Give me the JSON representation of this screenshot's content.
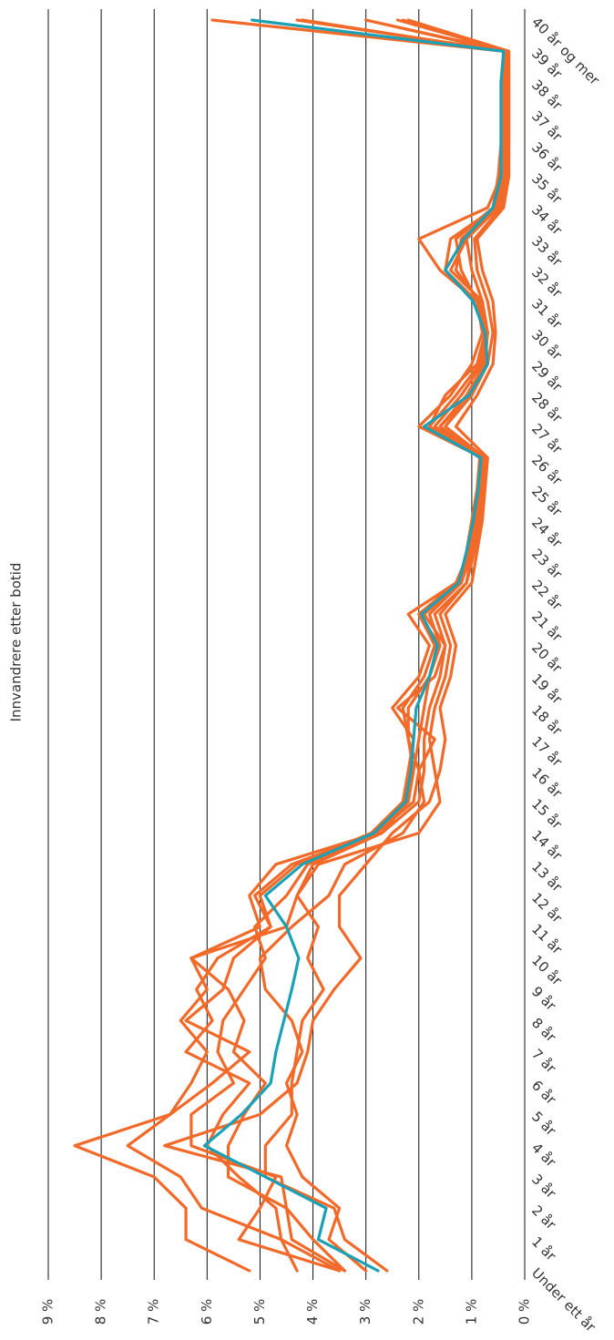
{
  "chart_data": {
    "type": "line",
    "title": "Innvandrere etter botid",
    "categories": [
      "Under ett år",
      "1 år",
      "2 år",
      "3 år",
      "4 år",
      "5 år",
      "6 år",
      "7 år",
      "8 år",
      "9 år",
      "10 år",
      "11 år",
      "12 år",
      "13 år",
      "14 år",
      "15 år",
      "16 år",
      "17 år",
      "18 år",
      "19 år",
      "20 år",
      "21 år",
      "22 år",
      "23 år",
      "24 år",
      "25 år",
      "26 år",
      "27 år",
      "28 år",
      "29 år",
      "30 år",
      "31 år",
      "32 år",
      "33 år",
      "34 år",
      "35 år",
      "36 år",
      "37 år",
      "38 år",
      "39 år",
      "40 år og mer"
    ],
    "series": [
      {
        "color": "#f26a2a",
        "values": [
          5.2,
          6.4,
          6.4,
          7.0,
          8.5,
          6.7,
          6.3,
          6.0,
          6.5,
          6.0,
          6.3,
          5.0,
          5.2,
          4.7,
          2.8,
          2.2,
          2.1,
          2.2,
          2.3,
          1.9,
          1.7,
          2.0,
          1.2,
          1.0,
          0.9,
          0.8,
          0.8,
          2.0,
          1.4,
          1.0,
          0.8,
          0.9,
          1.6,
          2.0,
          0.7,
          0.45,
          0.4,
          0.4,
          0.4,
          0.4,
          5.9
        ]
      },
      {
        "color": "#f26a2a",
        "values": [
          4.3,
          4.6,
          6.1,
          6.5,
          7.5,
          6.7,
          5.9,
          5.2,
          6.4,
          5.7,
          5.5,
          4.8,
          5.0,
          4.3,
          2.9,
          2.3,
          2.2,
          2.1,
          2.5,
          2.0,
          1.8,
          2.2,
          1.3,
          1.0,
          0.9,
          0.85,
          0.8,
          1.8,
          1.5,
          0.9,
          0.75,
          0.9,
          1.2,
          1.3,
          0.6,
          0.5,
          0.45,
          0.4,
          0.4,
          0.4,
          4.2
        ]
      },
      {
        "color": "#f26a2a",
        "values": [
          3.5,
          5.4,
          5.0,
          4.7,
          6.3,
          6.3,
          5.5,
          5.8,
          5.7,
          5.3,
          4.9,
          5.1,
          4.5,
          4.1,
          2.7,
          2.2,
          2.1,
          2.0,
          1.9,
          1.8,
          1.6,
          1.8,
          1.2,
          1.1,
          1.0,
          0.9,
          0.85,
          1.6,
          1.0,
          0.8,
          0.7,
          0.8,
          1.0,
          1.1,
          0.5,
          0.4,
          0.35,
          0.35,
          0.35,
          0.35,
          3.0
        ]
      },
      {
        "color": "#f26a2a",
        "values": [
          3.4,
          4.4,
          4.5,
          4.6,
          6.8,
          5.0,
          4.3,
          4.1,
          4.0,
          3.6,
          3.1,
          3.5,
          3.5,
          3.0,
          2.5,
          1.8,
          1.6,
          1.5,
          1.6,
          1.4,
          1.3,
          1.5,
          1.0,
          0.9,
          0.8,
          0.75,
          0.7,
          1.3,
          0.9,
          0.6,
          0.55,
          0.6,
          0.8,
          0.9,
          0.4,
          0.3,
          0.3,
          0.3,
          0.3,
          0.3,
          2.4
        ]
      },
      {
        "color": "#f26a2a",
        "values": [
          2.6,
          3.4,
          3.6,
          4.9,
          4.9,
          4.4,
          4.4,
          4.3,
          4.2,
          3.8,
          4.1,
          3.9,
          4.3,
          3.9,
          2.0,
          1.6,
          1.7,
          1.8,
          1.7,
          1.5,
          1.4,
          1.6,
          1.1,
          0.95,
          0.85,
          0.8,
          0.75,
          1.5,
          1.0,
          0.7,
          0.6,
          0.7,
          0.9,
          0.95,
          0.45,
          0.35,
          0.3,
          0.3,
          0.3,
          0.3,
          2.2
        ]
      },
      {
        "color": "#f26a2a",
        "values": [
          3.4,
          4.0,
          4.5,
          5.6,
          5.6,
          5.3,
          4.9,
          5.5,
          5.3,
          5.6,
          6.3,
          4.5,
          4.3,
          4.0,
          2.7,
          2.0,
          1.9,
          1.9,
          1.8,
          1.6,
          1.5,
          1.7,
          1.1,
          1.0,
          0.9,
          0.85,
          0.8,
          1.6,
          1.1,
          0.75,
          0.7,
          0.8,
          1.4,
          1.1,
          0.5,
          0.4,
          0.35,
          0.35,
          0.35,
          0.35,
          4.3
        ]
      },
      {
        "color": "#f26a2a",
        "values": [
          3.0,
          3.7,
          3.5,
          4.2,
          4.5,
          4.3,
          4.5,
          4.2,
          4.4,
          4.9,
          5.0,
          4.4,
          3.7,
          3.4,
          2.3,
          1.9,
          2.0,
          1.7,
          2.4,
          1.7,
          1.5,
          1.9,
          1.2,
          1.0,
          0.9,
          0.85,
          0.85,
          1.7,
          1.2,
          0.8,
          0.7,
          0.85,
          1.3,
          1.2,
          0.55,
          0.45,
          0.4,
          0.4,
          0.4,
          0.4,
          3.0
        ]
      },
      {
        "color": "#f26a2a",
        "values": [
          3.5,
          4.6,
          4.7,
          5.4,
          6.0,
          5.7,
          5.2,
          6.4,
          5.9,
          6.2,
          5.8,
          4.8,
          5.1,
          4.4,
          2.8,
          2.1,
          2.0,
          2.2,
          2.2,
          1.8,
          1.6,
          2.0,
          1.3,
          1.05,
          0.95,
          0.85,
          0.8,
          1.8,
          1.3,
          0.85,
          0.75,
          0.9,
          1.5,
          1.4,
          0.55,
          0.45,
          0.4,
          0.4,
          0.4,
          0.4,
          2.3
        ]
      },
      {
        "color": "#1aa1b5",
        "values": [
          2.77,
          3.9,
          3.75,
          4.9,
          6.05,
          5.35,
          4.8,
          4.7,
          4.55,
          4.4,
          4.27,
          4.5,
          4.9,
          4.2,
          2.85,
          2.25,
          2.15,
          2.1,
          2.05,
          1.8,
          1.65,
          1.95,
          1.25,
          1.1,
          0.97,
          0.88,
          0.83,
          1.9,
          1.05,
          0.7,
          0.75,
          0.97,
          1.5,
          1.15,
          0.6,
          0.45,
          0.45,
          0.45,
          0.45,
          0.4,
          5.15
        ]
      }
    ],
    "ylim": [
      0,
      9
    ],
    "yticks": [
      {
        "value": 0,
        "label": "0 %"
      },
      {
        "value": 1,
        "label": "1 %"
      },
      {
        "value": 2,
        "label": "2 %"
      },
      {
        "value": 3,
        "label": "3 %"
      },
      {
        "value": 4,
        "label": "4 %"
      },
      {
        "value": 5,
        "label": "5 %"
      },
      {
        "value": 6,
        "label": "6 %"
      },
      {
        "value": 7,
        "label": "7 %"
      },
      {
        "value": 8,
        "label": "8 %"
      },
      {
        "value": 9,
        "label": "9 %"
      }
    ],
    "grid": true
  }
}
